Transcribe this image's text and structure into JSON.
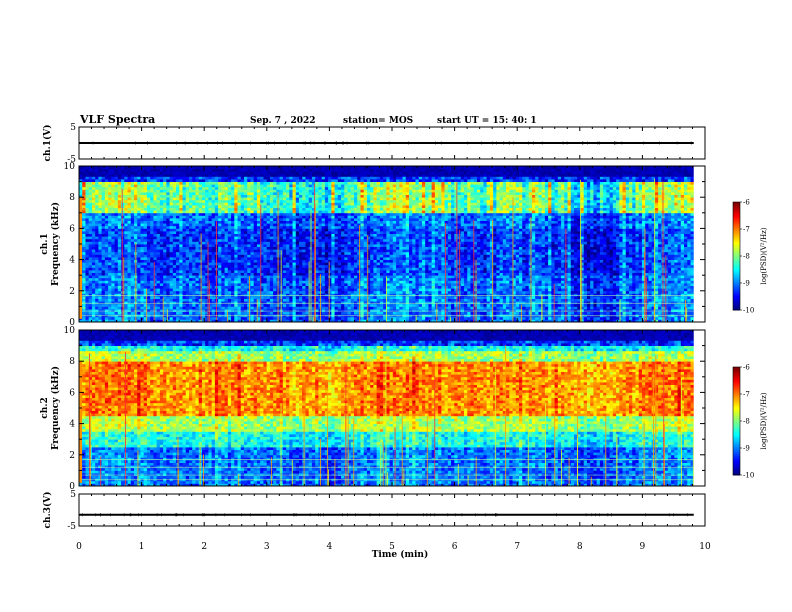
{
  "header": {
    "title": "VLF Spectra",
    "date": "Sep. 7 , 2022",
    "station": "station= MOS",
    "start": "start UT =  15: 40: 1"
  },
  "chart_data": {
    "type": "heatmap",
    "xlabel": "Time (min)",
    "xlim": [
      0,
      10
    ],
    "xticks": [
      "0",
      "1",
      "2",
      "3",
      "4",
      "5",
      "6",
      "7",
      "8",
      "9",
      "10"
    ],
    "panels": [
      {
        "id": "ch1-voltage",
        "ylabel": "ch.1(V)",
        "ylim": [
          -5,
          5
        ],
        "yticks": [
          "5",
          "-5"
        ],
        "trace_level": 0
      },
      {
        "id": "ch1-spectrogram",
        "ylabel": "ch.1\nFrequency (kHz)",
        "ylim": [
          0,
          10
        ],
        "yticks": [
          "10",
          "8",
          "6",
          "4",
          "2",
          "0"
        ],
        "data_end_min": 9.82,
        "band_top_khz": 9,
        "typical_log_psd": -8.3,
        "colorbar": {
          "label": "log(PSD)(V²/Hz)",
          "range": [
            -10,
            -6
          ],
          "ticks": [
            "-6",
            "-7",
            "-8",
            "-9",
            "-10"
          ]
        }
      },
      {
        "id": "ch2-spectrogram",
        "ylabel": "ch.2\nFrequency (kHz)",
        "ylim": [
          0,
          10
        ],
        "yticks": [
          "10",
          "8",
          "6",
          "4",
          "2",
          "0"
        ],
        "data_end_min": 9.82,
        "band_top_khz": 9,
        "typical_log_psd": -7.0,
        "colorbar": {
          "label": "log(PSD)(V²/Hz)",
          "range": [
            -10,
            -6
          ],
          "ticks": [
            "-6",
            "-7",
            "-8",
            "-9",
            "-10"
          ]
        }
      },
      {
        "id": "ch3-voltage",
        "ylabel": "ch.3(V)",
        "ylim": [
          -5,
          5
        ],
        "yticks": [
          "5",
          "-5"
        ],
        "trace_level": -1.5
      }
    ]
  }
}
